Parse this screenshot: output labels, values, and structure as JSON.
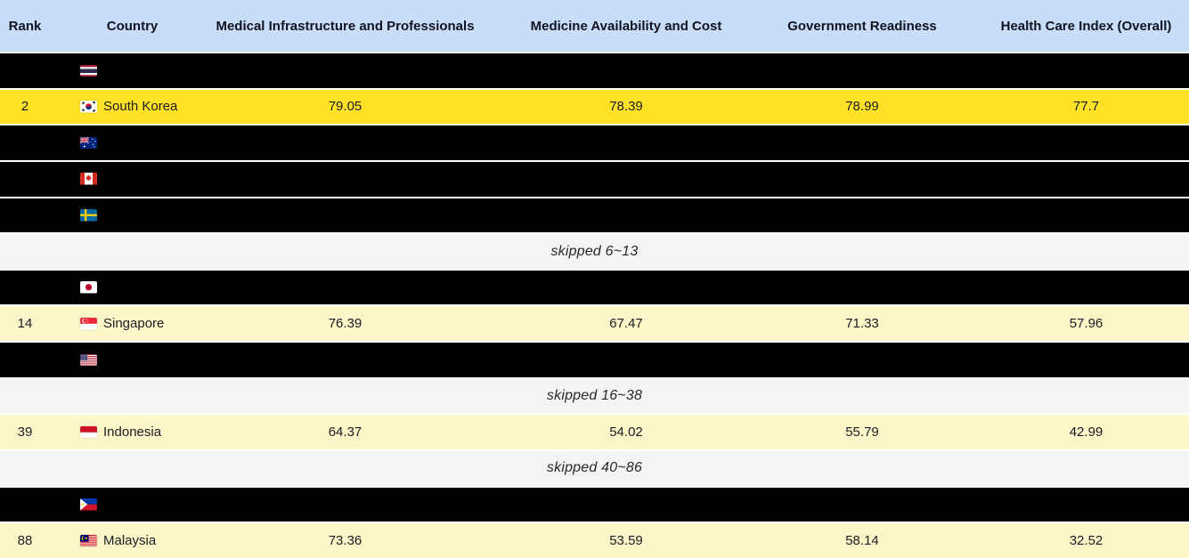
{
  "table": {
    "columns": [
      "Rank",
      "Country",
      "Medical Infrastructure and Professionals",
      "Medicine Availability and Cost",
      "Government Readiness",
      "Health Care Index (Overall)"
    ],
    "rows": [
      {
        "type": "hidden",
        "flag": "thailand"
      },
      {
        "type": "highlight",
        "rank": "2",
        "flag": "south-korea",
        "country": "South Korea",
        "medical": "79.05",
        "medicine": "78.39",
        "government": "78.99",
        "health": "77.7"
      },
      {
        "type": "hidden",
        "flag": "australia"
      },
      {
        "type": "hidden",
        "flag": "canada"
      },
      {
        "type": "hidden",
        "flag": "sweden"
      },
      {
        "type": "skipped",
        "label": "skipped 6~13"
      },
      {
        "type": "hidden",
        "flag": "japan"
      },
      {
        "type": "highlight-soft",
        "rank": "14",
        "flag": "singapore",
        "country": "Singapore",
        "medical": "76.39",
        "medicine": "67.47",
        "government": "71.33",
        "health": "57.96"
      },
      {
        "type": "hidden",
        "flag": "united-states"
      },
      {
        "type": "skipped",
        "label": "skipped 16~38"
      },
      {
        "type": "highlight-soft",
        "rank": "39",
        "flag": "indonesia",
        "country": "Indonesia",
        "medical": "64.37",
        "medicine": "54.02",
        "government": "55.79",
        "health": "42.99"
      },
      {
        "type": "skipped",
        "label": "skipped 40~86"
      },
      {
        "type": "hidden",
        "flag": "philippines"
      },
      {
        "type": "highlight-soft",
        "rank": "88",
        "flag": "malaysia",
        "country": "Malaysia",
        "medical": "73.36",
        "medicine": "53.59",
        "government": "58.14",
        "health": "32.52"
      }
    ]
  },
  "icons": [
    "thailand-flag-icon",
    "south-korea-flag-icon",
    "australia-flag-icon",
    "canada-flag-icon",
    "sweden-flag-icon",
    "japan-flag-icon",
    "singapore-flag-icon",
    "united-states-flag-icon",
    "indonesia-flag-icon",
    "philippines-flag-icon",
    "malaysia-flag-icon"
  ],
  "colors": {
    "header_bg": "#c8ddf7",
    "header_text": "#10131f",
    "highlight_row_bg": "#ffe226",
    "highlight_soft_row_bg": "#fcf6c8",
    "hidden_row_bg": "#000000",
    "skipped_row_bg": "#f4f4f4",
    "row_separator": "#ffffff",
    "text": "#1b1b22"
  }
}
